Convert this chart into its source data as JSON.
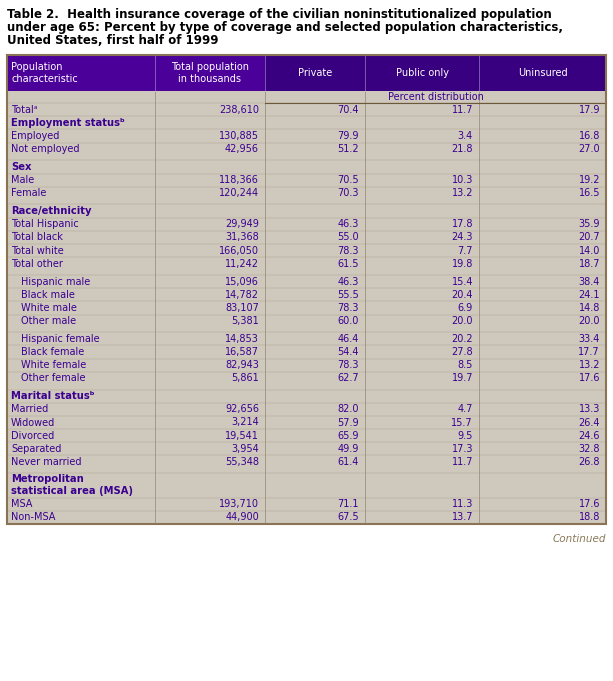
{
  "title_line1": "Table 2.  Health insurance coverage of the civilian noninstitutionalized population",
  "title_line2": "under age 65: Percent by type of coverage and selected population characteristics,",
  "title_line3": "United States, first half of 1999",
  "header_col1": "Population\ncharacteristic",
  "header_col2": "Total population\nin thousands",
  "header_col3": "Private",
  "header_col4": "Public only",
  "header_col5": "Uninsured",
  "percent_dist_label": "Percent distribution",
  "header_bg_light": "#4a0099",
  "header_bg_dark": "#380080",
  "body_bg": "#cfc8bc",
  "border_color": "#8B7355",
  "title_fg": "#000000",
  "data_fg": "#3a0090",
  "continued_color": "#8a7a5a",
  "rows": [
    {
      "label": "Totalᵃ",
      "pop": "238,610",
      "priv": "70.4",
      "pub": "11.7",
      "unins": "17.9",
      "bold": false,
      "indent": 0,
      "spacer_before": false,
      "header": false
    },
    {
      "label": "Employment statusᵇ",
      "pop": "",
      "priv": "",
      "pub": "",
      "unins": "",
      "bold": true,
      "indent": 0,
      "spacer_before": false,
      "header": true
    },
    {
      "label": "Employed",
      "pop": "130,885",
      "priv": "79.9",
      "pub": "3.4",
      "unins": "16.8",
      "bold": false,
      "indent": 0,
      "spacer_before": false,
      "header": false
    },
    {
      "label": "Not employed",
      "pop": "42,956",
      "priv": "51.2",
      "pub": "21.8",
      "unins": "27.0",
      "bold": false,
      "indent": 0,
      "spacer_before": false,
      "header": false
    },
    {
      "label": "Sex",
      "pop": "",
      "priv": "",
      "pub": "",
      "unins": "",
      "bold": true,
      "indent": 0,
      "spacer_before": true,
      "header": true
    },
    {
      "label": "Male",
      "pop": "118,366",
      "priv": "70.5",
      "pub": "10.3",
      "unins": "19.2",
      "bold": false,
      "indent": 0,
      "spacer_before": false,
      "header": false
    },
    {
      "label": "Female",
      "pop": "120,244",
      "priv": "70.3",
      "pub": "13.2",
      "unins": "16.5",
      "bold": false,
      "indent": 0,
      "spacer_before": false,
      "header": false
    },
    {
      "label": "Race/ethnicity",
      "pop": "",
      "priv": "",
      "pub": "",
      "unins": "",
      "bold": true,
      "indent": 0,
      "spacer_before": true,
      "header": true
    },
    {
      "label": "Total Hispanic",
      "pop": "29,949",
      "priv": "46.3",
      "pub": "17.8",
      "unins": "35.9",
      "bold": false,
      "indent": 0,
      "spacer_before": false,
      "header": false
    },
    {
      "label": "Total black",
      "pop": "31,368",
      "priv": "55.0",
      "pub": "24.3",
      "unins": "20.7",
      "bold": false,
      "indent": 0,
      "spacer_before": false,
      "header": false
    },
    {
      "label": "Total white",
      "pop": "166,050",
      "priv": "78.3",
      "pub": "7.7",
      "unins": "14.0",
      "bold": false,
      "indent": 0,
      "spacer_before": false,
      "header": false
    },
    {
      "label": "Total other",
      "pop": "11,242",
      "priv": "61.5",
      "pub": "19.8",
      "unins": "18.7",
      "bold": false,
      "indent": 0,
      "spacer_before": false,
      "header": false
    },
    {
      "label": "Hispanic male",
      "pop": "15,096",
      "priv": "46.3",
      "pub": "15.4",
      "unins": "38.4",
      "bold": false,
      "indent": 1,
      "spacer_before": true,
      "header": false
    },
    {
      "label": "Black male",
      "pop": "14,782",
      "priv": "55.5",
      "pub": "20.4",
      "unins": "24.1",
      "bold": false,
      "indent": 1,
      "spacer_before": false,
      "header": false
    },
    {
      "label": "White male",
      "pop": "83,107",
      "priv": "78.3",
      "pub": "6.9",
      "unins": "14.8",
      "bold": false,
      "indent": 1,
      "spacer_before": false,
      "header": false
    },
    {
      "label": "Other male",
      "pop": "5,381",
      "priv": "60.0",
      "pub": "20.0",
      "unins": "20.0",
      "bold": false,
      "indent": 1,
      "spacer_before": false,
      "header": false
    },
    {
      "label": "Hispanic female",
      "pop": "14,853",
      "priv": "46.4",
      "pub": "20.2",
      "unins": "33.4",
      "bold": false,
      "indent": 1,
      "spacer_before": true,
      "header": false
    },
    {
      "label": "Black female",
      "pop": "16,587",
      "priv": "54.4",
      "pub": "27.8",
      "unins": "17.7",
      "bold": false,
      "indent": 1,
      "spacer_before": false,
      "header": false
    },
    {
      "label": "White female",
      "pop": "82,943",
      "priv": "78.3",
      "pub": "8.5",
      "unins": "13.2",
      "bold": false,
      "indent": 1,
      "spacer_before": false,
      "header": false
    },
    {
      "label": "Other female",
      "pop": "5,861",
      "priv": "62.7",
      "pub": "19.7",
      "unins": "17.6",
      "bold": false,
      "indent": 1,
      "spacer_before": false,
      "header": false
    },
    {
      "label": "Marital statusᵇ",
      "pop": "",
      "priv": "",
      "pub": "",
      "unins": "",
      "bold": true,
      "indent": 0,
      "spacer_before": true,
      "header": true
    },
    {
      "label": "Married",
      "pop": "92,656",
      "priv": "82.0",
      "pub": "4.7",
      "unins": "13.3",
      "bold": false,
      "indent": 0,
      "spacer_before": false,
      "header": false
    },
    {
      "label": "Widowed",
      "pop": "3,214",
      "priv": "57.9",
      "pub": "15.7",
      "unins": "26.4",
      "bold": false,
      "indent": 0,
      "spacer_before": false,
      "header": false
    },
    {
      "label": "Divorced",
      "pop": "19,541",
      "priv": "65.9",
      "pub": "9.5",
      "unins": "24.6",
      "bold": false,
      "indent": 0,
      "spacer_before": false,
      "header": false
    },
    {
      "label": "Separated",
      "pop": "3,954",
      "priv": "49.9",
      "pub": "17.3",
      "unins": "32.8",
      "bold": false,
      "indent": 0,
      "spacer_before": false,
      "header": false
    },
    {
      "label": "Never married",
      "pop": "55,348",
      "priv": "61.4",
      "pub": "11.7",
      "unins": "26.8",
      "bold": false,
      "indent": 0,
      "spacer_before": false,
      "header": false
    },
    {
      "label": "Metropolitan\nstatistical area (MSA)",
      "pop": "",
      "priv": "",
      "pub": "",
      "unins": "",
      "bold": true,
      "indent": 0,
      "spacer_before": true,
      "header": true
    },
    {
      "label": "MSA",
      "pop": "193,710",
      "priv": "71.1",
      "pub": "11.3",
      "unins": "17.6",
      "bold": false,
      "indent": 0,
      "spacer_before": false,
      "header": false
    },
    {
      "label": "Non-MSA",
      "pop": "44,900",
      "priv": "67.5",
      "pub": "13.7",
      "unins": "18.8",
      "bold": false,
      "indent": 0,
      "spacer_before": false,
      "header": false
    }
  ]
}
